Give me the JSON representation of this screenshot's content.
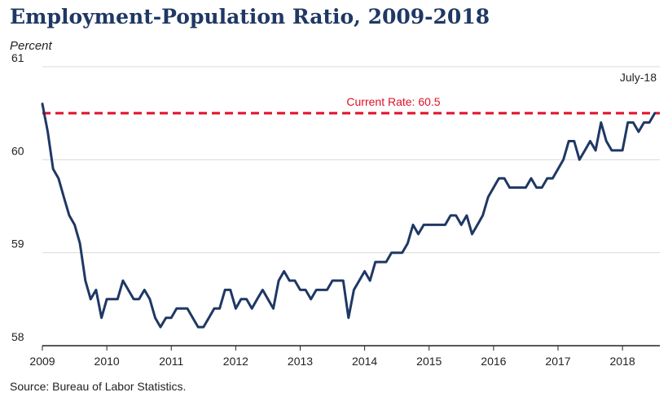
{
  "chart_data": {
    "type": "line",
    "title": "Employment-Population Ratio, 2009-2018",
    "ylabel": "Percent",
    "source": "Source: Bureau of Labor Statistics.",
    "ylim": [
      58,
      61
    ],
    "yticks": [
      "58",
      "59",
      "60",
      "61"
    ],
    "xlim": [
      2009,
      2018.58
    ],
    "xticks": [
      "2009",
      "2010",
      "2011",
      "2012",
      "2013",
      "2014",
      "2015",
      "2016",
      "2017",
      "2018"
    ],
    "grid": true,
    "reference_line": {
      "value": 60.5,
      "label": "Current Rate: 60.5",
      "color": "#e0102a"
    },
    "date_annotation": "July-18",
    "series": [
      {
        "color": "#1f3864",
        "x": [
          2009.0,
          2009.083,
          2009.167,
          2009.25,
          2009.333,
          2009.417,
          2009.5,
          2009.583,
          2009.667,
          2009.75,
          2009.833,
          2009.917,
          2010.0,
          2010.083,
          2010.167,
          2010.25,
          2010.333,
          2010.417,
          2010.5,
          2010.583,
          2010.667,
          2010.75,
          2010.833,
          2010.917,
          2011.0,
          2011.083,
          2011.167,
          2011.25,
          2011.333,
          2011.417,
          2011.5,
          2011.583,
          2011.667,
          2011.75,
          2011.833,
          2011.917,
          2012.0,
          2012.083,
          2012.167,
          2012.25,
          2012.333,
          2012.417,
          2012.5,
          2012.583,
          2012.667,
          2012.75,
          2012.833,
          2012.917,
          2013.0,
          2013.083,
          2013.167,
          2013.25,
          2013.333,
          2013.417,
          2013.5,
          2013.583,
          2013.667,
          2013.75,
          2013.833,
          2013.917,
          2014.0,
          2014.083,
          2014.167,
          2014.25,
          2014.333,
          2014.417,
          2014.5,
          2014.583,
          2014.667,
          2014.75,
          2014.833,
          2014.917,
          2015.0,
          2015.083,
          2015.167,
          2015.25,
          2015.333,
          2015.417,
          2015.5,
          2015.583,
          2015.667,
          2015.75,
          2015.833,
          2015.917,
          2016.0,
          2016.083,
          2016.167,
          2016.25,
          2016.333,
          2016.417,
          2016.5,
          2016.583,
          2016.667,
          2016.75,
          2016.833,
          2016.917,
          2017.0,
          2017.083,
          2017.167,
          2017.25,
          2017.333,
          2017.417,
          2017.5,
          2017.583,
          2017.667,
          2017.75,
          2017.833,
          2017.917,
          2018.0,
          2018.083,
          2018.167,
          2018.25,
          2018.333,
          2018.417,
          2018.5
        ],
        "y": [
          60.6,
          60.3,
          59.9,
          59.8,
          59.6,
          59.4,
          59.3,
          59.1,
          58.7,
          58.5,
          58.6,
          58.3,
          58.5,
          58.5,
          58.5,
          58.7,
          58.6,
          58.5,
          58.5,
          58.6,
          58.5,
          58.3,
          58.2,
          58.3,
          58.3,
          58.4,
          58.4,
          58.4,
          58.3,
          58.2,
          58.2,
          58.3,
          58.4,
          58.4,
          58.6,
          58.6,
          58.4,
          58.5,
          58.5,
          58.4,
          58.5,
          58.6,
          58.5,
          58.4,
          58.7,
          58.8,
          58.7,
          58.7,
          58.6,
          58.6,
          58.5,
          58.6,
          58.6,
          58.6,
          58.7,
          58.7,
          58.7,
          58.3,
          58.6,
          58.7,
          58.8,
          58.7,
          58.9,
          58.9,
          58.9,
          59.0,
          59.0,
          59.0,
          59.1,
          59.3,
          59.2,
          59.3,
          59.3,
          59.3,
          59.3,
          59.3,
          59.4,
          59.4,
          59.3,
          59.4,
          59.2,
          59.3,
          59.4,
          59.6,
          59.7,
          59.8,
          59.8,
          59.7,
          59.7,
          59.7,
          59.7,
          59.8,
          59.7,
          59.7,
          59.8,
          59.8,
          59.9,
          60.0,
          60.2,
          60.2,
          60.0,
          60.1,
          60.2,
          60.1,
          60.4,
          60.2,
          60.1,
          60.1,
          60.1,
          60.4,
          60.4,
          60.3,
          60.4,
          60.4,
          60.5
        ]
      }
    ]
  }
}
